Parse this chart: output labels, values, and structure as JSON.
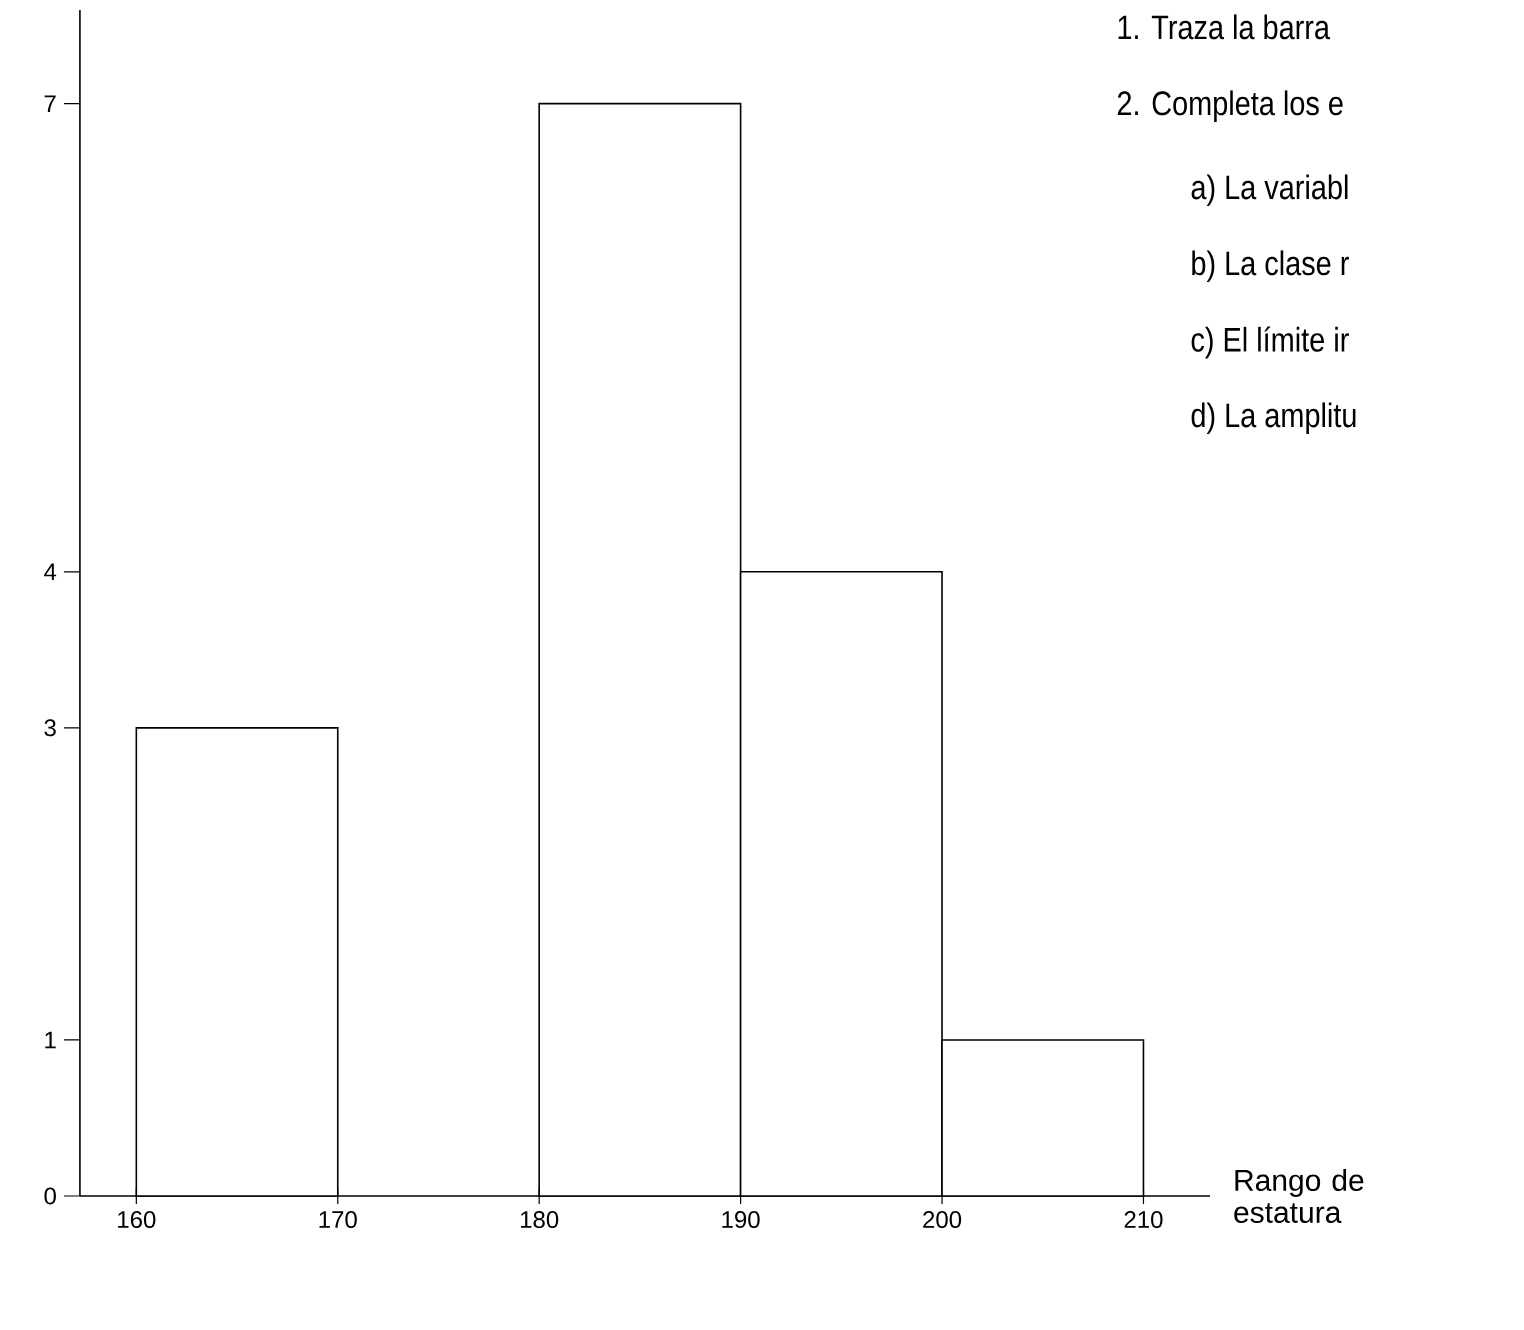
{
  "chart_data": {
    "type": "histogram",
    "xlabel": "Rango de estatura",
    "bins": [
      160,
      170,
      180,
      190,
      200,
      210
    ],
    "values": [
      3,
      null,
      7,
      4,
      1
    ],
    "color": "#ffffff",
    "xlim": [
      157.2,
      213.3
    ],
    "ylim": [
      0,
      7.6
    ],
    "xticks": [
      160,
      170,
      180,
      190,
      200,
      210
    ],
    "yticks": [
      0,
      1,
      3,
      4,
      7
    ],
    "grid": false,
    "annotations": [
      "1.  Traza la barra",
      "2.  Completa los e",
      "a)    La variabl",
      "b)    La clase r",
      "c)    El límite ir",
      "d)    La amplitu"
    ]
  }
}
